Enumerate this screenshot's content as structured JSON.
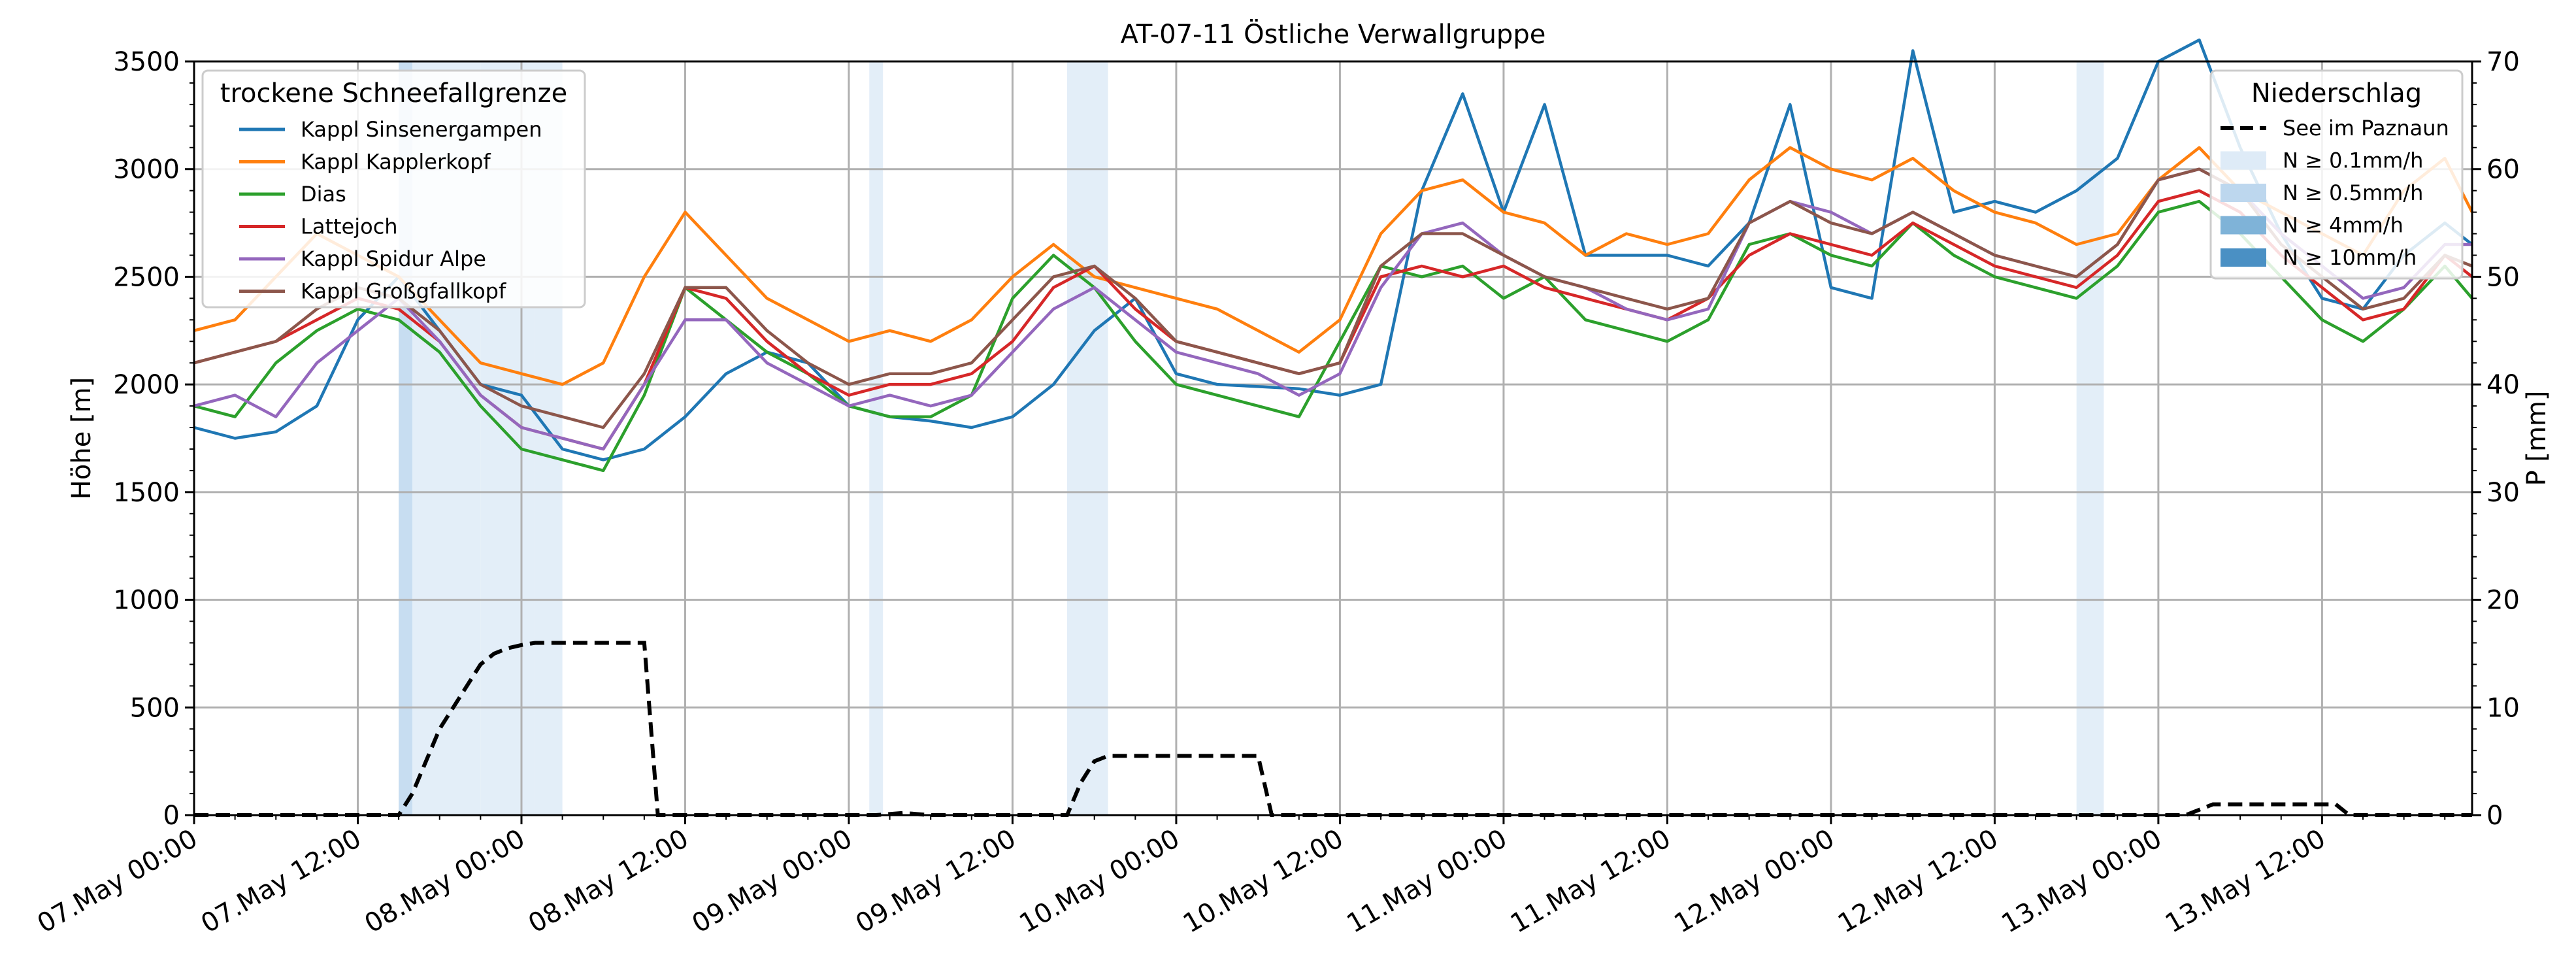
{
  "chart_data": {
    "type": "line",
    "title": "AT-07-11 Östliche Verwallgruppe",
    "ylabel": "Höhe [m]",
    "y2label": "P [mm]",
    "ylim": [
      0,
      3500
    ],
    "y2lim": [
      0,
      70
    ],
    "xlim_hours": [
      0,
      167
    ],
    "x_ticks": [
      {
        "h": 0,
        "label": "07.May 00:00"
      },
      {
        "h": 12,
        "label": "07.May 12:00"
      },
      {
        "h": 24,
        "label": "08.May 00:00"
      },
      {
        "h": 36,
        "label": "08.May 12:00"
      },
      {
        "h": 48,
        "label": "09.May 00:00"
      },
      {
        "h": 60,
        "label": "09.May 12:00"
      },
      {
        "h": 72,
        "label": "10.May 00:00"
      },
      {
        "h": 84,
        "label": "10.May 12:00"
      },
      {
        "h": 96,
        "label": "11.May 00:00"
      },
      {
        "h": 108,
        "label": "11.May 12:00"
      },
      {
        "h": 120,
        "label": "12.May 00:00"
      },
      {
        "h": 132,
        "label": "12.May 12:00"
      },
      {
        "h": 144,
        "label": "13.May 00:00"
      },
      {
        "h": 156,
        "label": "13.May 12:00"
      }
    ],
    "y_ticks": [
      0,
      500,
      1000,
      1500,
      2000,
      2500,
      3000,
      3500
    ],
    "y2_ticks": [
      0,
      10,
      20,
      30,
      40,
      50,
      60,
      70
    ],
    "grid": true,
    "legend_snow_title": "trockene Schneefallgrenze",
    "legend_snow_placement": "top-left",
    "legend_precip_title": "Niederschlag",
    "legend_precip_placement": "top-right",
    "series": [
      {
        "name": "Kappl Sinsenergampen",
        "color": "#1f77b4",
        "x": [
          0,
          3,
          6,
          9,
          12,
          15,
          18,
          21,
          24,
          27,
          30,
          33,
          36,
          39,
          42,
          45,
          48,
          51,
          54,
          57,
          60,
          63,
          66,
          69,
          72,
          75,
          78,
          81,
          84,
          87,
          90,
          93,
          96,
          99,
          102,
          105,
          108,
          111,
          114,
          117,
          120,
          123,
          126,
          129,
          132,
          135,
          138,
          141,
          144,
          147,
          150,
          153,
          156,
          159,
          162,
          165,
          167
        ],
        "y": [
          1800,
          1750,
          1780,
          1900,
          2300,
          2500,
          2250,
          2000,
          1950,
          1700,
          1650,
          1700,
          1850,
          2050,
          2150,
          2100,
          1900,
          1850,
          1830,
          1800,
          1850,
          2000,
          2250,
          2400,
          2050,
          2000,
          1990,
          1980,
          1950,
          2000,
          2900,
          3350,
          2800,
          3300,
          2600,
          2600,
          2600,
          2550,
          2750,
          3300,
          2450,
          2400,
          3550,
          2800,
          2850,
          2800,
          2900,
          3050,
          3500,
          3600,
          3100,
          2700,
          2400,
          2350,
          2600,
          2750,
          2650
        ]
      },
      {
        "name": "Kappl Kapplerkopf",
        "color": "#ff7f0e",
        "x": [
          0,
          3,
          6,
          9,
          12,
          15,
          18,
          21,
          24,
          27,
          30,
          33,
          36,
          39,
          42,
          45,
          48,
          51,
          54,
          57,
          60,
          63,
          66,
          69,
          72,
          75,
          78,
          81,
          84,
          87,
          90,
          93,
          96,
          99,
          102,
          105,
          108,
          111,
          114,
          117,
          120,
          123,
          126,
          129,
          132,
          135,
          138,
          141,
          144,
          147,
          150,
          153,
          156,
          159,
          162,
          165,
          167
        ],
        "y": [
          2250,
          2300,
          2500,
          2700,
          2600,
          2500,
          2300,
          2100,
          2050,
          2000,
          2100,
          2500,
          2800,
          2600,
          2400,
          2300,
          2200,
          2250,
          2200,
          2300,
          2500,
          2650,
          2500,
          2450,
          2400,
          2350,
          2250,
          2150,
          2300,
          2700,
          2900,
          2950,
          2800,
          2750,
          2600,
          2700,
          2650,
          2700,
          2950,
          3100,
          3000,
          2950,
          3050,
          2900,
          2800,
          2750,
          2650,
          2700,
          2950,
          3100,
          2900,
          2800,
          2700,
          2600,
          2900,
          3050,
          2800
        ]
      },
      {
        "name": "Dias",
        "color": "#2ca02c",
        "x": [
          0,
          3,
          6,
          9,
          12,
          15,
          18,
          21,
          24,
          27,
          30,
          33,
          36,
          39,
          42,
          45,
          48,
          51,
          54,
          57,
          60,
          63,
          66,
          69,
          72,
          75,
          78,
          81,
          84,
          87,
          90,
          93,
          96,
          99,
          102,
          105,
          108,
          111,
          114,
          117,
          120,
          123,
          126,
          129,
          132,
          135,
          138,
          141,
          144,
          147,
          150,
          153,
          156,
          159,
          162,
          165,
          167
        ],
        "y": [
          1900,
          1850,
          2100,
          2250,
          2350,
          2300,
          2150,
          1900,
          1700,
          1650,
          1600,
          1950,
          2450,
          2300,
          2150,
          2050,
          1900,
          1850,
          1850,
          1950,
          2400,
          2600,
          2450,
          2200,
          2000,
          1950,
          1900,
          1850,
          2200,
          2550,
          2500,
          2550,
          2400,
          2500,
          2300,
          2250,
          2200,
          2300,
          2650,
          2700,
          2600,
          2550,
          2750,
          2600,
          2500,
          2450,
          2400,
          2550,
          2800,
          2850,
          2700,
          2500,
          2300,
          2200,
          2350,
          2550,
          2400
        ]
      },
      {
        "name": "Lattejoch",
        "color": "#d62728",
        "x": [
          0,
          3,
          6,
          9,
          12,
          15,
          18,
          21,
          24,
          27,
          30,
          33,
          36,
          39,
          42,
          45,
          48,
          51,
          54,
          57,
          60,
          63,
          66,
          69,
          72,
          75,
          78,
          81,
          84,
          87,
          90,
          93,
          96,
          99,
          102,
          105,
          108,
          111,
          114,
          117,
          120,
          123,
          126,
          129,
          132,
          135,
          138,
          141,
          144,
          147,
          150,
          153,
          156,
          159,
          162,
          165,
          167
        ],
        "y": [
          2100,
          2150,
          2200,
          2300,
          2400,
          2350,
          2200,
          1950,
          1800,
          1750,
          1700,
          2000,
          2450,
          2400,
          2200,
          2050,
          1950,
          2000,
          2000,
          2050,
          2200,
          2450,
          2550,
          2350,
          2200,
          2150,
          2100,
          2050,
          2100,
          2500,
          2550,
          2500,
          2550,
          2450,
          2400,
          2350,
          2300,
          2400,
          2600,
          2700,
          2650,
          2600,
          2750,
          2650,
          2550,
          2500,
          2450,
          2600,
          2850,
          2900,
          2800,
          2600,
          2450,
          2300,
          2350,
          2600,
          2500
        ]
      },
      {
        "name": "Kappl Spidur Alpe",
        "color": "#9467bd",
        "x": [
          0,
          3,
          6,
          9,
          12,
          15,
          18,
          21,
          24,
          27,
          30,
          33,
          36,
          39,
          42,
          45,
          48,
          51,
          54,
          57,
          60,
          63,
          66,
          69,
          72,
          75,
          78,
          81,
          84,
          87,
          90,
          93,
          96,
          99,
          102,
          105,
          108,
          111,
          114,
          117,
          120,
          123,
          126,
          129,
          132,
          135,
          138,
          141,
          144,
          147,
          150,
          153,
          156,
          159,
          162,
          165,
          167
        ],
        "y": [
          1900,
          1950,
          1850,
          2100,
          2250,
          2400,
          2200,
          1950,
          1800,
          1750,
          1700,
          2000,
          2300,
          2300,
          2100,
          2000,
          1900,
          1950,
          1900,
          1950,
          2150,
          2350,
          2450,
          2300,
          2150,
          2100,
          2050,
          1950,
          2050,
          2450,
          2700,
          2750,
          2600,
          2500,
          2450,
          2350,
          2300,
          2350,
          2750,
          2850,
          2800,
          2700,
          2800,
          2700,
          2600,
          2550,
          2500,
          2650,
          2950,
          3000,
          2900,
          2700,
          2550,
          2400,
          2450,
          2650,
          2650
        ]
      },
      {
        "name": "Kappl Großgfallkopf",
        "color": "#8c564b",
        "x": [
          0,
          3,
          6,
          9,
          12,
          15,
          18,
          21,
          24,
          27,
          30,
          33,
          36,
          39,
          42,
          45,
          48,
          51,
          54,
          57,
          60,
          63,
          66,
          69,
          72,
          75,
          78,
          81,
          84,
          87,
          90,
          93,
          96,
          99,
          102,
          105,
          108,
          111,
          114,
          117,
          120,
          123,
          126,
          129,
          132,
          135,
          138,
          141,
          144,
          147,
          150,
          153,
          156,
          159,
          162,
          165,
          167
        ],
        "y": [
          2100,
          2150,
          2200,
          2350,
          2450,
          2400,
          2250,
          2000,
          1900,
          1850,
          1800,
          2050,
          2450,
          2450,
          2250,
          2100,
          2000,
          2050,
          2050,
          2100,
          2300,
          2500,
          2550,
          2400,
          2200,
          2150,
          2100,
          2050,
          2100,
          2550,
          2700,
          2700,
          2600,
          2500,
          2450,
          2400,
          2350,
          2400,
          2750,
          2850,
          2750,
          2700,
          2800,
          2700,
          2600,
          2550,
          2500,
          2650,
          2950,
          3000,
          2900,
          2650,
          2500,
          2350,
          2400,
          2600,
          2550
        ]
      }
    ],
    "precip_series": {
      "name": "See im Paznaun",
      "color": "#000000",
      "x": [
        0,
        14,
        15,
        16,
        17,
        18,
        19,
        20,
        21,
        22,
        23,
        24,
        25,
        26,
        27,
        28,
        29,
        30,
        31,
        32,
        33,
        34,
        48,
        50,
        52,
        54,
        56,
        62,
        64,
        65,
        66,
        67,
        70,
        75,
        78,
        79,
        80,
        90,
        118,
        146,
        147,
        148,
        150,
        152,
        154,
        155,
        156,
        157,
        158,
        167
      ],
      "y": [
        0,
        0,
        0,
        2,
        5,
        8,
        10,
        12,
        14,
        15,
        15.5,
        15.8,
        16,
        16,
        16,
        16,
        16,
        16,
        16,
        16,
        16,
        0,
        0,
        0,
        0.2,
        0,
        0,
        0,
        0,
        3,
        5,
        5.5,
        5.5,
        5.5,
        5.5,
        0,
        0,
        0,
        0,
        0,
        0.5,
        1,
        1,
        1,
        1,
        1,
        1,
        1,
        0,
        0
      ]
    },
    "precip_legend": [
      {
        "label": "N ≥ 0.1mm/h",
        "color": "#deebf7"
      },
      {
        "label": "N ≥ 0.5mm/h",
        "color": "#bdd7ee"
      },
      {
        "label": "N ≥ 4mm/h",
        "color": "#7fb3d8"
      },
      {
        "label": "N ≥ 10mm/h",
        "color": "#4a90c4"
      }
    ],
    "precip_bands": [
      {
        "from": 15,
        "to": 16,
        "level": 1
      },
      {
        "from": 16,
        "to": 21,
        "level": 0
      },
      {
        "from": 21,
        "to": 25,
        "level": 0
      },
      {
        "from": 25,
        "to": 27,
        "level": 0
      },
      {
        "from": 49.5,
        "to": 50.5,
        "level": 0
      },
      {
        "from": 64,
        "to": 67,
        "level": 0
      },
      {
        "from": 138,
        "to": 139,
        "level": 0
      },
      {
        "from": 139,
        "to": 140,
        "level": 0
      }
    ]
  }
}
